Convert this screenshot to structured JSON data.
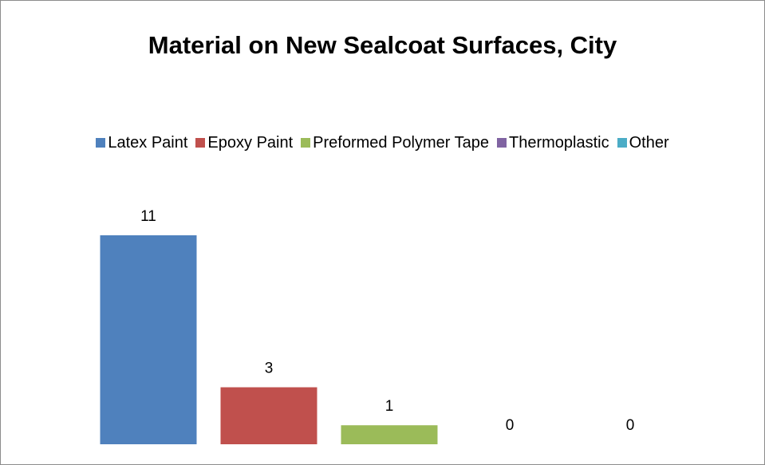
{
  "chart_data": {
    "type": "bar",
    "title": "Material on New Sealcoat Surfaces, City",
    "xlabel": "",
    "ylabel": "",
    "categories": [
      "Latex Paint",
      "Epoxy Paint",
      "Preformed Polymer Tape",
      "Thermoplastic",
      "Other"
    ],
    "values": [
      11,
      3,
      1,
      0,
      0
    ],
    "colors": [
      "#4f81bd",
      "#c0504d",
      "#9bbb59",
      "#8064a2",
      "#4bacc6"
    ],
    "legend_position": "top",
    "grid": false,
    "ylim": [
      0,
      11
    ]
  }
}
